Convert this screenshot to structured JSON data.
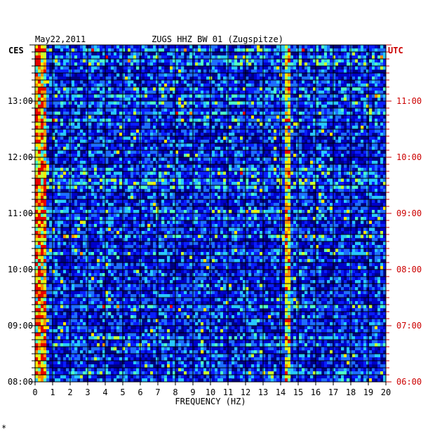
{
  "chart_data": {
    "type": "heatmap",
    "date": "May22,2011",
    "title": "ZUGS HHZ BW 01 (Zugspitze)",
    "left_axis_label": "CES",
    "right_axis_label": "UTC",
    "xlabel": "FREQUENCY (HZ)",
    "xlim": [
      0,
      20
    ],
    "x_ticks": [
      "0",
      "1",
      "2",
      "3",
      "4",
      "5",
      "6",
      "7",
      "8",
      "9",
      "10",
      "11",
      "12",
      "13",
      "14",
      "15",
      "16",
      "17",
      "18",
      "19",
      "20"
    ],
    "left_time_ticks": [
      "13:00",
      "12:00",
      "11:00",
      "10:00",
      "09:00",
      "08:00"
    ],
    "right_time_ticks": [
      "11:00",
      "10:00",
      "09:00",
      "08:00",
      "07:00",
      "06:00"
    ],
    "time_range_local": [
      "08:00",
      "14:00"
    ],
    "grid": true,
    "colormap": [
      "#00007a",
      "#0000c8",
      "#0a1eff",
      "#1e6eff",
      "#28c8ff",
      "#50ffc8",
      "#c8ff32",
      "#ffe600",
      "#ff8c00",
      "#e60000"
    ],
    "features": [
      {
        "description": "high energy band near 0-0.5 Hz"
      },
      {
        "description": "persistent narrow line near 14.3 Hz"
      }
    ],
    "colors": {
      "axis_text": "#000000",
      "utc_text": "#cc0000",
      "background": "#000080"
    }
  },
  "corner_mark": "*"
}
